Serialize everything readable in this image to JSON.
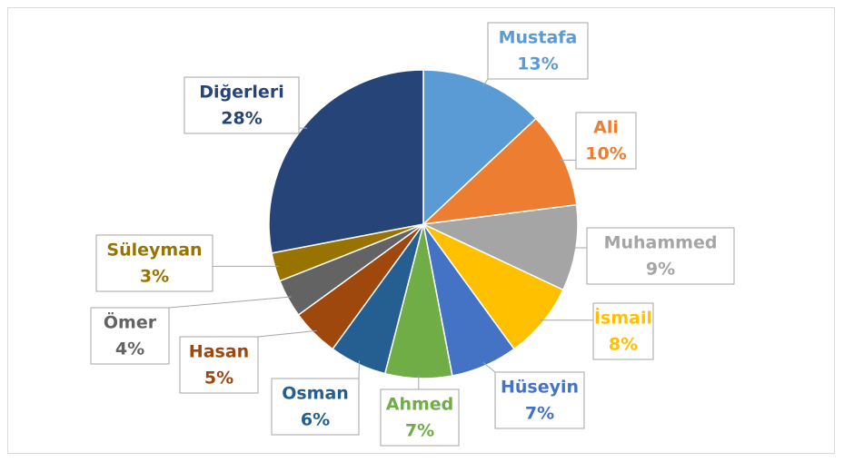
{
  "chart_data": {
    "type": "pie",
    "categories": [
      "Mustafa",
      "Ali",
      "Muhammed",
      "İsmail",
      "Hüseyin",
      "Ahmed",
      "Osman",
      "Hasan",
      "Ömer",
      "Süleyman",
      "Diğerleri"
    ],
    "values": [
      13,
      10,
      9,
      8,
      7,
      7,
      6,
      5,
      4,
      3,
      28
    ],
    "value_labels": [
      "13%",
      "10%",
      "9%",
      "8%",
      "7%",
      "7%",
      "6%",
      "5%",
      "4%",
      "3%",
      "28%"
    ],
    "colors": [
      "#5b9bd5",
      "#ed7d31",
      "#a5a5a5",
      "#ffc000",
      "#4472c4",
      "#70ad47",
      "#255e91",
      "#9e480e",
      "#636363",
      "#997300",
      "#264478"
    ]
  }
}
